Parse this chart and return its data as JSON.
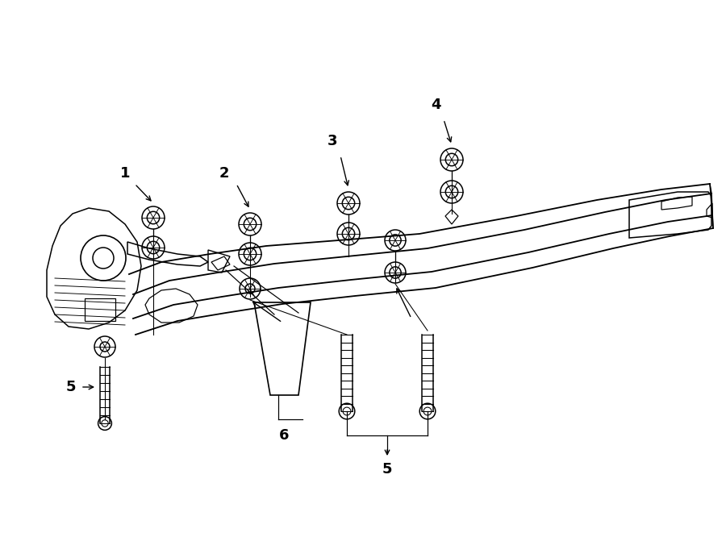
{
  "background_color": "#ffffff",
  "line_color": "#000000",
  "label_color": "#000000",
  "fig_width": 9.0,
  "fig_height": 6.61,
  "dpi": 100,
  "font_size": 13,
  "lw": 1.1
}
